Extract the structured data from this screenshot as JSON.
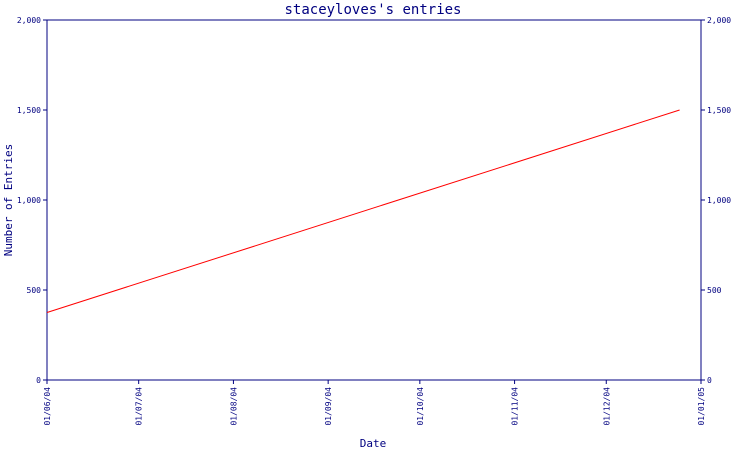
{
  "chart_data": {
    "type": "line",
    "title": "staceyloves's entries",
    "xlabel": "Date",
    "ylabel": "Number of Entries",
    "x_ticks": [
      "01/06/04",
      "01/07/04",
      "01/08/04",
      "01/09/04",
      "01/10/04",
      "01/11/04",
      "01/12/04",
      "01/01/05"
    ],
    "y_ticks": [
      "0",
      "500",
      "1,000",
      "1,500",
      "2,000"
    ],
    "y_ticks_right": [
      "0",
      "500",
      "1,000",
      "1,500",
      "2,000"
    ],
    "ylim": [
      0,
      2000
    ],
    "xlim": [
      "2004-06-01",
      "2005-01-01"
    ],
    "series": [
      {
        "x": [
          "2004-06-01",
          "2004-12-25"
        ],
        "y": [
          375,
          1500
        ]
      }
    ],
    "grid": false,
    "colors": {
      "axis": "#000080",
      "line": "#ff0000",
      "text": "#000080"
    }
  }
}
